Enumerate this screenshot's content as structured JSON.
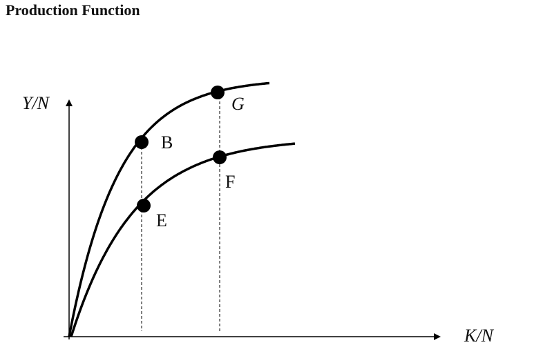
{
  "title": "Production Function",
  "axes": {
    "y": "Y/N",
    "x": "K/N"
  },
  "points": [
    {
      "label": "B"
    },
    {
      "label": "G"
    },
    {
      "label": "E"
    },
    {
      "label": "F"
    }
  ]
}
